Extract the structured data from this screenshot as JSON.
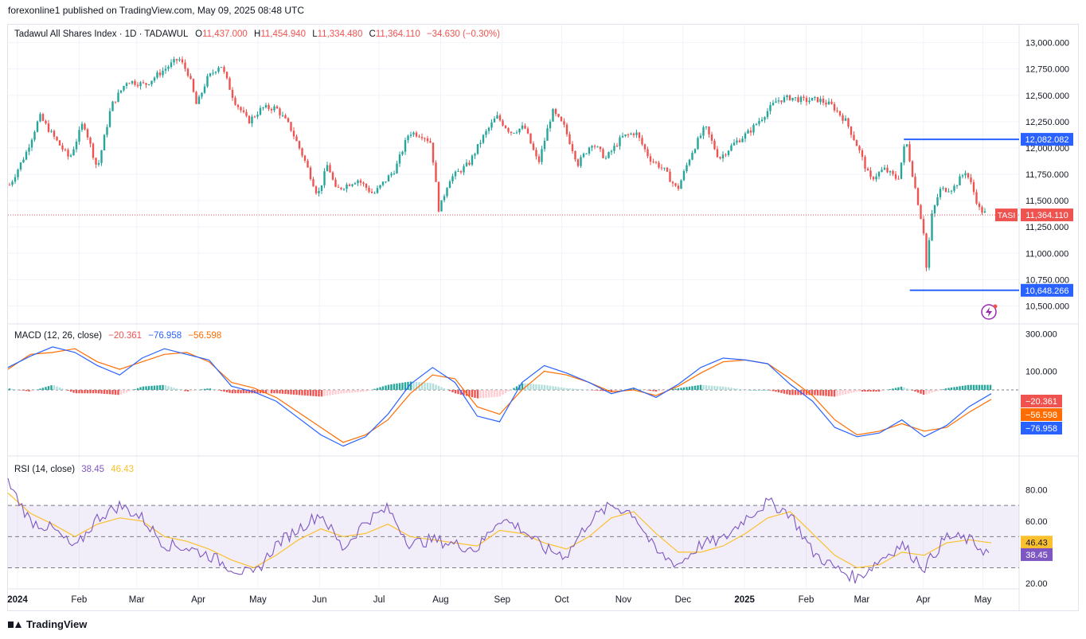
{
  "header": {
    "publisher_line": "forexonline1 published on TradingView.com, May 09, 2025 08:48 UTC"
  },
  "legend": {
    "symbol": "Tadawul All Shares Index · 1D · TADAWUL",
    "o_label": "O",
    "o_value": "11,437.000",
    "h_label": "H",
    "h_value": "11,454.940",
    "l_label": "L",
    "l_value": "11,334.480",
    "c_label": "C",
    "c_value": "11,364.110",
    "change": "−34.630 (−0.30%)"
  },
  "macd_legend": {
    "label": "MACD (12, 26, close)",
    "v1": "−20.361",
    "v2": "−76.958",
    "v3": "−56.598"
  },
  "rsi_legend": {
    "label": "RSI (14, close)",
    "v1": "38.45",
    "v2": "46.43"
  },
  "footer": {
    "brand": "TradingView"
  },
  "colors": {
    "up": "#26a69a",
    "down": "#ef5350",
    "macd": "#2962ff",
    "signal": "#ff6d00",
    "rsi": "#7e57c2",
    "rsi_ma": "#fbc02d",
    "level": "#2962ff"
  },
  "chart_data": [
    {
      "type": "candlestick",
      "title": "Tadawul All Shares Index · 1D · TADAWUL",
      "x_tick_labels": [
        "2024",
        "Feb",
        "Mar",
        "Apr",
        "May",
        "Jun",
        "Jul",
        "Aug",
        "Sep",
        "Oct",
        "Nov",
        "Dec",
        "2025",
        "Feb",
        "Mar",
        "Apr",
        "May"
      ],
      "y_tick_labels": [
        "13,000.000",
        "12,750.000",
        "12,500.000",
        "12,250.000",
        "12,000.000",
        "11,750.000",
        "11,500.000",
        "11,250.000",
        "11,000.000",
        "10,750.000",
        "10,500.000"
      ],
      "ylim": [
        10420,
        13050
      ],
      "approx_close_path": [
        {
          "x": "2024-01-02",
          "y": 11650
        },
        {
          "x": "2024-01-10",
          "y": 11950
        },
        {
          "x": "2024-01-17",
          "y": 12300
        },
        {
          "x": "2024-01-25",
          "y": 12080
        },
        {
          "x": "2024-02-01",
          "y": 11900
        },
        {
          "x": "2024-02-08",
          "y": 12250
        },
        {
          "x": "2024-02-15",
          "y": 11800
        },
        {
          "x": "2024-02-22",
          "y": 12400
        },
        {
          "x": "2024-03-01",
          "y": 12640
        },
        {
          "x": "2024-03-10",
          "y": 12600
        },
        {
          "x": "2024-03-20",
          "y": 12750
        },
        {
          "x": "2024-03-27",
          "y": 12850
        },
        {
          "x": "2024-04-01",
          "y": 12700
        },
        {
          "x": "2024-04-05",
          "y": 12400
        },
        {
          "x": "2024-04-10",
          "y": 12650
        },
        {
          "x": "2024-04-17",
          "y": 12800
        },
        {
          "x": "2024-04-24",
          "y": 12450
        },
        {
          "x": "2024-05-01",
          "y": 12250
        },
        {
          "x": "2024-05-08",
          "y": 12380
        },
        {
          "x": "2024-05-15",
          "y": 12380
        },
        {
          "x": "2024-05-22",
          "y": 12200
        },
        {
          "x": "2024-05-29",
          "y": 11900
        },
        {
          "x": "2024-06-05",
          "y": 11550
        },
        {
          "x": "2024-06-10",
          "y": 11850
        },
        {
          "x": "2024-06-14",
          "y": 11600
        },
        {
          "x": "2024-06-25",
          "y": 11700
        },
        {
          "x": "2024-07-03",
          "y": 11560
        },
        {
          "x": "2024-07-14",
          "y": 11800
        },
        {
          "x": "2024-07-21",
          "y": 12150
        },
        {
          "x": "2024-07-28",
          "y": 12120
        },
        {
          "x": "2024-08-01",
          "y": 12050
        },
        {
          "x": "2024-08-05",
          "y": 11400
        },
        {
          "x": "2024-08-10",
          "y": 11700
        },
        {
          "x": "2024-08-20",
          "y": 11850
        },
        {
          "x": "2024-08-27",
          "y": 12100
        },
        {
          "x": "2024-09-03",
          "y": 12300
        },
        {
          "x": "2024-09-10",
          "y": 12150
        },
        {
          "x": "2024-09-17",
          "y": 12200
        },
        {
          "x": "2024-09-24",
          "y": 11850
        },
        {
          "x": "2024-10-01",
          "y": 12350
        },
        {
          "x": "2024-10-07",
          "y": 12200
        },
        {
          "x": "2024-10-14",
          "y": 11850
        },
        {
          "x": "2024-10-21",
          "y": 12050
        },
        {
          "x": "2024-10-28",
          "y": 11900
        },
        {
          "x": "2024-11-05",
          "y": 12100
        },
        {
          "x": "2024-11-12",
          "y": 12150
        },
        {
          "x": "2024-11-19",
          "y": 11900
        },
        {
          "x": "2024-11-26",
          "y": 11800
        },
        {
          "x": "2024-12-03",
          "y": 11600
        },
        {
          "x": "2024-12-10",
          "y": 11950
        },
        {
          "x": "2024-12-17",
          "y": 12200
        },
        {
          "x": "2024-12-24",
          "y": 11900
        },
        {
          "x": "2025-01-01",
          "y": 12050
        },
        {
          "x": "2025-01-08",
          "y": 12150
        },
        {
          "x": "2025-01-15",
          "y": 12300
        },
        {
          "x": "2025-01-22",
          "y": 12450
        },
        {
          "x": "2025-01-29",
          "y": 12480
        },
        {
          "x": "2025-02-05",
          "y": 12450
        },
        {
          "x": "2025-02-12",
          "y": 12460
        },
        {
          "x": "2025-02-19",
          "y": 12400
        },
        {
          "x": "2025-02-26",
          "y": 12250
        },
        {
          "x": "2025-03-04",
          "y": 12000
        },
        {
          "x": "2025-03-10",
          "y": 11700
        },
        {
          "x": "2025-03-17",
          "y": 11800
        },
        {
          "x": "2025-03-24",
          "y": 11700
        },
        {
          "x": "2025-03-28",
          "y": 12080
        },
        {
          "x": "2025-04-06",
          "y": 11200
        },
        {
          "x": "2025-04-07",
          "y": 10800
        },
        {
          "x": "2025-04-10",
          "y": 11350
        },
        {
          "x": "2025-04-14",
          "y": 11600
        },
        {
          "x": "2025-04-21",
          "y": 11620
        },
        {
          "x": "2025-04-27",
          "y": 11780
        },
        {
          "x": "2025-04-30",
          "y": 11650
        },
        {
          "x": "2025-05-04",
          "y": 11420
        },
        {
          "x": "2025-05-08",
          "y": 11364
        }
      ],
      "last_price_label": "TASI",
      "last_price": "11,364.110",
      "horizontal_levels": [
        {
          "value": 12082.082,
          "label": "12,082.082"
        },
        {
          "value": 10648.266,
          "label": "10,648.266"
        }
      ]
    },
    {
      "type": "line",
      "title": "MACD (12, 26, close)",
      "y_tick_labels": [
        "300.000",
        "100.000"
      ],
      "ylim": [
        -340,
        340
      ],
      "series": [
        {
          "name": "MACD",
          "values_approx": [
            120,
            180,
            230,
            200,
            130,
            80,
            170,
            220,
            190,
            160,
            20,
            -10,
            -60,
            -150,
            -240,
            -300,
            -250,
            -130,
            30,
            120,
            40,
            -140,
            -170,
            40,
            130,
            90,
            40,
            -20,
            10,
            -40,
            30,
            120,
            170,
            160,
            140,
            30,
            -60,
            -200,
            -250,
            -230,
            -160,
            -250,
            -190,
            -90,
            -20
          ]
        },
        {
          "name": "Signal",
          "values_approx": [
            110,
            190,
            200,
            220,
            150,
            110,
            150,
            190,
            200,
            150,
            40,
            10,
            -40,
            -120,
            -200,
            -280,
            -240,
            -160,
            -20,
            80,
            60,
            -90,
            -130,
            0,
            100,
            80,
            40,
            -10,
            0,
            -30,
            20,
            90,
            150,
            160,
            140,
            60,
            -30,
            -160,
            -240,
            -220,
            -180,
            -220,
            -200,
            -120,
            -50
          ]
        }
      ],
      "current_values": [
        "−20.361",
        "−56.598",
        "−76.958"
      ]
    },
    {
      "type": "line",
      "title": "RSI (14, close)",
      "y_tick_labels": [
        "80.00",
        "60.00",
        "40.00",
        "20.00"
      ],
      "ylim": [
        18,
        90
      ],
      "bands": [
        70,
        50,
        30
      ],
      "series": [
        {
          "name": "RSI",
          "values_approx": [
            85,
            60,
            55,
            42,
            62,
            70,
            62,
            45,
            43,
            38,
            30,
            25,
            45,
            55,
            65,
            42,
            60,
            68,
            45,
            48,
            45,
            42,
            62,
            55,
            42,
            38,
            60,
            70,
            65,
            40,
            32,
            45,
            48,
            62,
            72,
            65,
            40,
            30,
            23,
            35,
            45,
            30,
            50,
            48,
            38
          ]
        },
        {
          "name": "RSI-based MA",
          "values_approx": [
            78,
            65,
            58,
            50,
            58,
            62,
            60,
            50,
            47,
            42,
            35,
            30,
            38,
            48,
            55,
            50,
            52,
            58,
            50,
            48,
            46,
            44,
            54,
            52,
            46,
            42,
            50,
            62,
            66,
            52,
            40,
            40,
            44,
            52,
            62,
            66,
            52,
            38,
            30,
            32,
            40,
            38,
            46,
            48,
            46
          ]
        }
      ],
      "current_values": [
        "46.43",
        "38.45"
      ]
    }
  ]
}
